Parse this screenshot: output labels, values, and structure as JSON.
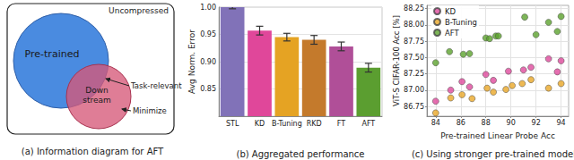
{
  "diagram": {
    "caption": "(a) Information diagram for AFT",
    "outer_label": "Uncompressed",
    "circles": {
      "pretrained": "Pre-trained",
      "downstream": [
        "Down",
        "stream"
      ]
    },
    "annotations": [
      "Task-relevant",
      "Minimize"
    ]
  },
  "chart_data": [
    {
      "type": "bar",
      "caption": "(b) Aggregated performance",
      "y_label": "Avg Norm. Error",
      "categories": [
        "STL",
        "KD",
        "B-Tuning",
        "RKD",
        "FT",
        "AFT"
      ],
      "values": [
        1.0,
        0.957,
        0.945,
        0.94,
        0.928,
        0.889
      ],
      "errors": [
        0.003,
        0.008,
        0.007,
        0.008,
        0.008,
        0.008
      ],
      "colors": [
        "#8172b8",
        "#e0479a",
        "#e5a323",
        "#c47a2c",
        "#b04f98",
        "#5b9e30"
      ],
      "ylim": [
        0.8,
        1.0
      ],
      "yticks": [
        0.85,
        {
          "value": 0.9,
          "label": "0.90"
        },
        0.95,
        {
          "value": 1.0,
          "label": "1.00"
        }
      ],
      "grid": true
    },
    {
      "type": "scatter",
      "caption": "(c) Using stronger pre-trained models",
      "x_label": "Pre-trained Linear Probe Acc",
      "y_label": "ViT-S CIFAR-100 Acc [%]",
      "series": [
        {
          "name": "KD",
          "color": "#de4a9c",
          "x": [
            84.0,
            85.2,
            86.1,
            86.7,
            88.0,
            88.6,
            89.8,
            91.0,
            91.6,
            93.0,
            93.7,
            94.0
          ],
          "values": [
            86.83,
            87.0,
            87.13,
            87.05,
            87.24,
            87.15,
            87.29,
            87.31,
            87.35,
            87.48,
            87.28,
            87.45
          ]
        },
        {
          "name": "B-Tuning",
          "color": "#eaa828",
          "x": [
            84.0,
            85.2,
            86.1,
            86.9,
            88.1,
            88.6,
            89.6,
            90.1,
            90.9,
            91.6,
            93.0,
            94.0
          ],
          "values": [
            86.65,
            86.88,
            86.93,
            86.87,
            87.03,
            86.97,
            87.01,
            87.07,
            87.1,
            87.16,
            87.03,
            87.1
          ]
        },
        {
          "name": "AFT",
          "color": "#5ca22e",
          "x": [
            84.0,
            85.1,
            86.2,
            86.7,
            88.0,
            88.3,
            88.8,
            89.0,
            91.1,
            92.0,
            93.0,
            93.7,
            94.0
          ],
          "values": [
            87.42,
            87.59,
            87.55,
            87.56,
            87.8,
            87.79,
            87.83,
            87.83,
            88.12,
            87.85,
            88.04,
            87.9,
            88.13
          ]
        }
      ],
      "xlim": [
        83.3,
        94.6
      ],
      "xticks": [
        84,
        86,
        88,
        90,
        92,
        94
      ],
      "ylim": [
        86.6,
        88.3
      ],
      "yticks": [
        86.75,
        {
          "value": 87.0,
          "label": "87.00"
        },
        87.25,
        {
          "value": 87.5,
          "label": "87.50"
        },
        87.75,
        {
          "value": 88.0,
          "label": "88.00"
        },
        88.25
      ],
      "grid": true,
      "legend": "upper left",
      "marker": "circle"
    }
  ]
}
